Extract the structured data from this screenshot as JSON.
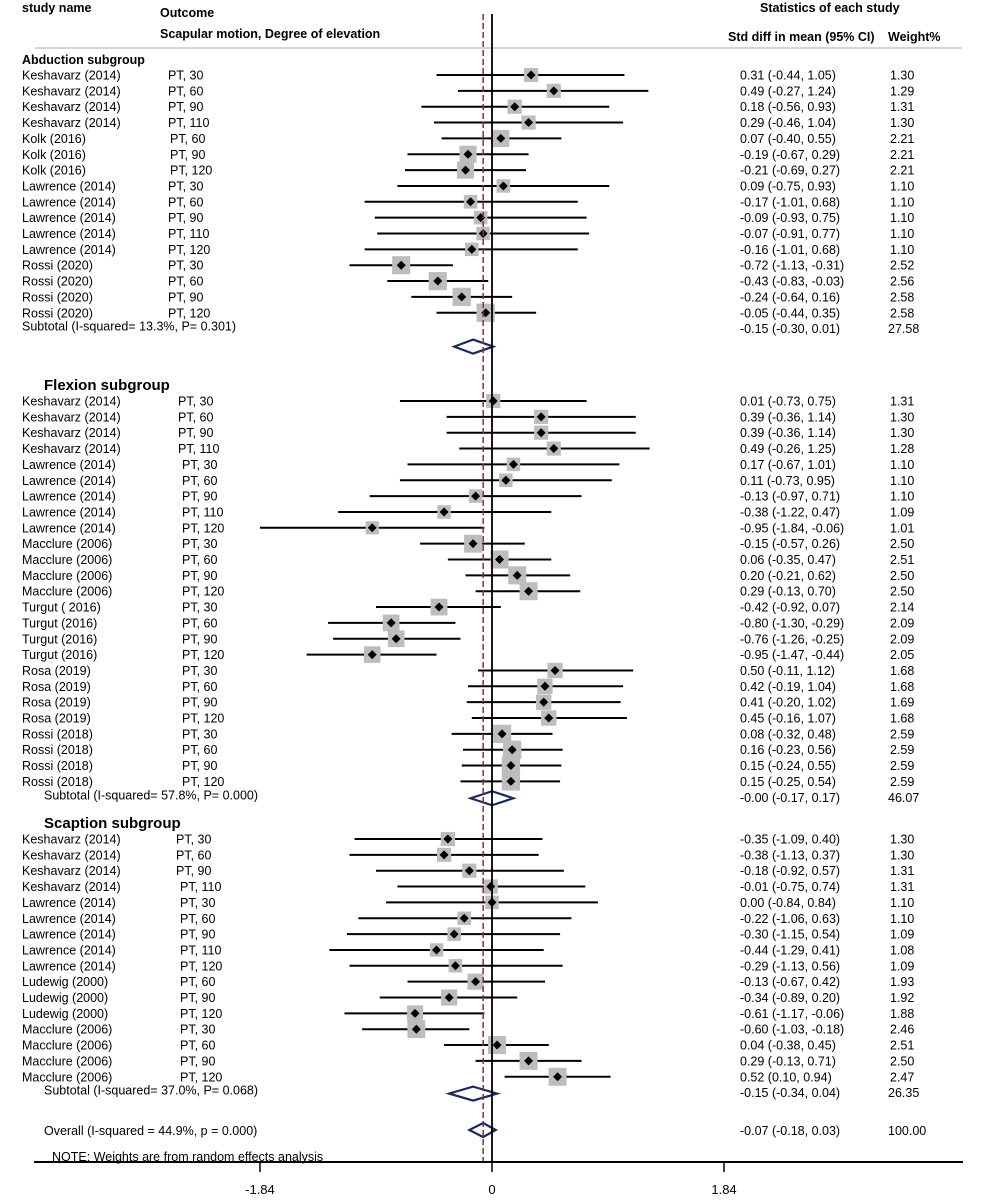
{
  "headers": {
    "study_name": "study name",
    "outcome": "Outcome",
    "outcome_sub": "Scapular motion, Degree of elevation",
    "stats_title": "Statistics of each study",
    "col_ci": "Std diff in mean (95% CI)",
    "col_weight": "Weight%"
  },
  "note": "NOTE: Weights are from random effects analysis",
  "chart_data": {
    "type": "forest",
    "x_ticks": [
      {
        "value": -1.84,
        "label": "-1.84"
      },
      {
        "value": 0,
        "label": "0"
      },
      {
        "value": 1.84,
        "label": "1.84"
      }
    ],
    "reference_line": 0,
    "overall_line": -0.07,
    "subgroups": [
      {
        "title": "Abduction subgroup",
        "studies": [
          {
            "study": "Keshavarz (2014)",
            "outcome": "PT, 30",
            "es": 0.31,
            "lo": -0.44,
            "hi": 1.05,
            "ci_text": "0.31 (-0.44, 1.05)",
            "weight": "1.30"
          },
          {
            "study": "Keshavarz (2014)",
            "outcome": "PT, 60",
            "es": 0.49,
            "lo": -0.27,
            "hi": 1.24,
            "ci_text": "0.49 (-0.27, 1.24)",
            "weight": "1.29"
          },
          {
            "study": "Keshavarz (2014)",
            "outcome": "PT, 90",
            "es": 0.18,
            "lo": -0.56,
            "hi": 0.93,
            "ci_text": "0.18 (-0.56, 0.93)",
            "weight": "1.31"
          },
          {
            "study": "Keshavarz (2014)",
            "outcome": "PT, 110",
            "es": 0.29,
            "lo": -0.46,
            "hi": 1.04,
            "ci_text": "0.29 (-0.46, 1.04)",
            "weight": "1.30"
          },
          {
            "study": "Kolk (2016)",
            "outcome": "PT, 60",
            "es": 0.07,
            "lo": -0.4,
            "hi": 0.55,
            "ci_text": "0.07 (-0.40, 0.55)",
            "weight": "2.21"
          },
          {
            "study": "Kolk (2016)",
            "outcome": "PT, 90",
            "es": -0.19,
            "lo": -0.67,
            "hi": 0.29,
            "ci_text": "-0.19 (-0.67, 0.29)",
            "weight": "2.21"
          },
          {
            "study": "Kolk (2016)",
            "outcome": "PT, 120",
            "es": -0.21,
            "lo": -0.69,
            "hi": 0.27,
            "ci_text": "-0.21 (-0.69, 0.27)",
            "weight": "2.21"
          },
          {
            "study": "Lawrence (2014)",
            "outcome": "PT, 30",
            "es": 0.09,
            "lo": -0.75,
            "hi": 0.93,
            "ci_text": "0.09 (-0.75, 0.93)",
            "weight": "1.10"
          },
          {
            "study": "Lawrence (2014)",
            "outcome": "PT, 60",
            "es": -0.17,
            "lo": -1.01,
            "hi": 0.68,
            "ci_text": "-0.17 (-1.01, 0.68)",
            "weight": "1.10"
          },
          {
            "study": "Lawrence (2014)",
            "outcome": "PT, 90",
            "es": -0.09,
            "lo": -0.93,
            "hi": 0.75,
            "ci_text": "-0.09 (-0.93, 0.75)",
            "weight": "1.10"
          },
          {
            "study": "Lawrence (2014)",
            "outcome": "PT, 110",
            "es": -0.07,
            "lo": -0.91,
            "hi": 0.77,
            "ci_text": "-0.07 (-0.91, 0.77)",
            "weight": "1.10"
          },
          {
            "study": "Lawrence (2014)",
            "outcome": "PT, 120",
            "es": -0.16,
            "lo": -1.01,
            "hi": 0.68,
            "ci_text": "-0.16 (-1.01, 0.68)",
            "weight": "1.10"
          },
          {
            "study": "Rossi (2020)",
            "outcome": "PT, 30",
            "es": -0.72,
            "lo": -1.13,
            "hi": -0.31,
            "ci_text": "-0.72 (-1.13, -0.31)",
            "weight": "2.52"
          },
          {
            "study": "Rossi (2020)",
            "outcome": "PT, 60",
            "es": -0.43,
            "lo": -0.83,
            "hi": -0.03,
            "ci_text": "-0.43 (-0.83, -0.03)",
            "weight": "2.56"
          },
          {
            "study": "Rossi (2020)",
            "outcome": "PT, 90",
            "es": -0.24,
            "lo": -0.64,
            "hi": 0.16,
            "ci_text": "-0.24 (-0.64, 0.16)",
            "weight": "2.58"
          },
          {
            "study": "Rossi (2020)",
            "outcome": "PT, 120",
            "es": -0.05,
            "lo": -0.44,
            "hi": 0.35,
            "ci_text": "-0.05 (-0.44, 0.35)",
            "weight": "2.58"
          }
        ],
        "subtotal": {
          "label": "Subtotal (I-squared= 13.3%, P= 0.301)",
          "es": -0.15,
          "lo": -0.3,
          "hi": 0.01,
          "ci_text": "-0.15 (-0.30, 0.01)",
          "weight": "27.58"
        }
      },
      {
        "title": "Flexion subgroup",
        "studies": [
          {
            "study": "Keshavarz (2014)",
            "outcome": "PT, 30",
            "es": 0.01,
            "lo": -0.73,
            "hi": 0.75,
            "ci_text": "0.01 (-0.73, 0.75)",
            "weight": "1.31"
          },
          {
            "study": "Keshavarz (2014)",
            "outcome": "PT, 60",
            "es": 0.39,
            "lo": -0.36,
            "hi": 1.14,
            "ci_text": "0.39 (-0.36, 1.14)",
            "weight": "1.30"
          },
          {
            "study": "Keshavarz (2014)",
            "outcome": "PT, 90",
            "es": 0.39,
            "lo": -0.36,
            "hi": 1.14,
            "ci_text": "0.39 (-0.36, 1.14)",
            "weight": "1.30"
          },
          {
            "study": "Keshavarz (2014)",
            "outcome": "PT, 110",
            "es": 0.49,
            "lo": -0.26,
            "hi": 1.25,
            "ci_text": "0.49 (-0.26, 1.25)",
            "weight": "1.28"
          },
          {
            "study": "Lawrence (2014)",
            "outcome": "PT, 30",
            "es": 0.17,
            "lo": -0.67,
            "hi": 1.01,
            "ci_text": "0.17 (-0.67, 1.01)",
            "weight": "1.10"
          },
          {
            "study": "Lawrence (2014)",
            "outcome": "PT, 60",
            "es": 0.11,
            "lo": -0.73,
            "hi": 0.95,
            "ci_text": "0.11 (-0.73, 0.95)",
            "weight": "1.10"
          },
          {
            "study": "Lawrence (2014)",
            "outcome": "PT, 90",
            "es": -0.13,
            "lo": -0.97,
            "hi": 0.71,
            "ci_text": "-0.13 (-0.97, 0.71)",
            "weight": "1.10"
          },
          {
            "study": "Lawrence (2014)",
            "outcome": "PT, 110",
            "es": -0.38,
            "lo": -1.22,
            "hi": 0.47,
            "ci_text": "-0.38 (-1.22, 0.47)",
            "weight": "1.09"
          },
          {
            "study": "Lawrence (2014)",
            "outcome": "PT, 120",
            "es": -0.95,
            "lo": -1.84,
            "hi": -0.06,
            "ci_text": "-0.95 (-1.84, -0.06)",
            "weight": "1.01"
          },
          {
            "study": "Macclure (2006)",
            "outcome": "PT, 30",
            "es": -0.15,
            "lo": -0.57,
            "hi": 0.26,
            "ci_text": "-0.15 (-0.57, 0.26)",
            "weight": "2.50"
          },
          {
            "study": "Macclure (2006)",
            "outcome": "PT, 60",
            "es": 0.06,
            "lo": -0.35,
            "hi": 0.47,
            "ci_text": "0.06 (-0.35, 0.47)",
            "weight": "2.51"
          },
          {
            "study": "Macclure (2006)",
            "outcome": "PT, 90",
            "es": 0.2,
            "lo": -0.21,
            "hi": 0.62,
            "ci_text": "0.20 (-0.21, 0.62)",
            "weight": "2.50"
          },
          {
            "study": "Macclure (2006)",
            "outcome": "PT, 120",
            "es": 0.29,
            "lo": -0.13,
            "hi": 0.7,
            "ci_text": "0.29 (-0.13, 0.70)",
            "weight": "2.50"
          },
          {
            "study": "Turgut ( 2016)",
            "outcome": "PT, 30",
            "es": -0.42,
            "lo": -0.92,
            "hi": 0.07,
            "ci_text": "-0.42 (-0.92, 0.07)",
            "weight": "2.14"
          },
          {
            "study": "Turgut (2016)",
            "outcome": "PT, 60",
            "es": -0.8,
            "lo": -1.3,
            "hi": -0.29,
            "ci_text": "-0.80 (-1.30, -0.29)",
            "weight": "2.09"
          },
          {
            "study": "Turgut (2016)",
            "outcome": "PT, 90",
            "es": -0.76,
            "lo": -1.26,
            "hi": -0.25,
            "ci_text": "-0.76 (-1.26, -0.25)",
            "weight": "2.09"
          },
          {
            "study": "Turgut (2016)",
            "outcome": "PT, 120",
            "es": -0.95,
            "lo": -1.47,
            "hi": -0.44,
            "ci_text": "-0.95 (-1.47, -0.44)",
            "weight": "2.05"
          },
          {
            "study": "Rosa (2019)",
            "outcome": "PT, 30",
            "es": 0.5,
            "lo": -0.11,
            "hi": 1.12,
            "ci_text": "0.50 (-0.11, 1.12)",
            "weight": "1.68"
          },
          {
            "study": "Rosa (2019)",
            "outcome": "PT, 60",
            "es": 0.42,
            "lo": -0.19,
            "hi": 1.04,
            "ci_text": "0.42 (-0.19, 1.04)",
            "weight": "1.68"
          },
          {
            "study": "Rosa (2019)",
            "outcome": "PT, 90",
            "es": 0.41,
            "lo": -0.2,
            "hi": 1.02,
            "ci_text": "0.41 (-0.20, 1.02)",
            "weight": "1.69"
          },
          {
            "study": "Rosa (2019)",
            "outcome": "PT, 120",
            "es": 0.45,
            "lo": -0.16,
            "hi": 1.07,
            "ci_text": "0.45 (-0.16, 1.07)",
            "weight": "1.68"
          },
          {
            "study": "Rossi (2018)",
            "outcome": "PT, 30",
            "es": 0.08,
            "lo": -0.32,
            "hi": 0.48,
            "ci_text": "0.08 (-0.32, 0.48)",
            "weight": "2.59"
          },
          {
            "study": "Rossi (2018)",
            "outcome": "PT, 60",
            "es": 0.16,
            "lo": -0.23,
            "hi": 0.56,
            "ci_text": "0.16 (-0.23, 0.56)",
            "weight": "2.59"
          },
          {
            "study": "Rossi (2018)",
            "outcome": "PT, 90",
            "es": 0.15,
            "lo": -0.24,
            "hi": 0.55,
            "ci_text": "0.15 (-0.24, 0.55)",
            "weight": "2.59"
          },
          {
            "study": "Rossi (2018)",
            "outcome": "PT, 120",
            "es": 0.15,
            "lo": -0.25,
            "hi": 0.54,
            "ci_text": "0.15 (-0.25, 0.54)",
            "weight": "2.59"
          }
        ],
        "subtotal": {
          "label": "Subtotal (I-squared= 57.8%, P= 0.000)",
          "es": -0.0,
          "lo": -0.17,
          "hi": 0.17,
          "ci_text": "-0.00 (-0.17, 0.17)",
          "weight": "46.07"
        }
      },
      {
        "title": "Scaption subgroup",
        "studies": [
          {
            "study": "Keshavarz (2014)",
            "outcome": "PT, 30",
            "es": -0.35,
            "lo": -1.09,
            "hi": 0.4,
            "ci_text": "-0.35 (-1.09, 0.40)",
            "weight": "1.30"
          },
          {
            "study": "Keshavarz (2014)",
            "outcome": "PT, 60",
            "es": -0.38,
            "lo": -1.13,
            "hi": 0.37,
            "ci_text": "-0.38 (-1.13, 0.37)",
            "weight": "1.30"
          },
          {
            "study": "Keshavarz (2014)",
            "outcome": "PT, 90",
            "es": -0.18,
            "lo": -0.92,
            "hi": 0.57,
            "ci_text": "-0.18 (-0.92, 0.57)",
            "weight": "1.31"
          },
          {
            "study": "Keshavarz (2014)",
            "outcome": "PT, 110",
            "es": -0.01,
            "lo": -0.75,
            "hi": 0.74,
            "ci_text": "-0.01 (-0.75, 0.74)",
            "weight": "1.31"
          },
          {
            "study": "Lawrence (2014)",
            "outcome": "PT, 30",
            "es": 0.0,
            "lo": -0.84,
            "hi": 0.84,
            "ci_text": "0.00 (-0.84, 0.84)",
            "weight": "1.10"
          },
          {
            "study": "Lawrence (2014)",
            "outcome": "PT, 60",
            "es": -0.22,
            "lo": -1.06,
            "hi": 0.63,
            "ci_text": "-0.22 (-1.06, 0.63)",
            "weight": "1.10"
          },
          {
            "study": "Lawrence (2014)",
            "outcome": "PT, 90",
            "es": -0.3,
            "lo": -1.15,
            "hi": 0.54,
            "ci_text": "-0.30 (-1.15, 0.54)",
            "weight": "1.09"
          },
          {
            "study": "Lawrence (2014)",
            "outcome": "PT, 110",
            "es": -0.44,
            "lo": -1.29,
            "hi": 0.41,
            "ci_text": "-0.44 (-1.29, 0.41)",
            "weight": "1.08"
          },
          {
            "study": "Lawrence (2014)",
            "outcome": "PT, 120",
            "es": -0.29,
            "lo": -1.13,
            "hi": 0.56,
            "ci_text": "-0.29 (-1.13, 0.56)",
            "weight": "1.09"
          },
          {
            "study": "Ludewig (2000)",
            "outcome": "PT, 60",
            "es": -0.13,
            "lo": -0.67,
            "hi": 0.42,
            "ci_text": "-0.13 (-0.67, 0.42)",
            "weight": "1.93"
          },
          {
            "study": "Ludewig (2000)",
            "outcome": "PT, 90",
            "es": -0.34,
            "lo": -0.89,
            "hi": 0.2,
            "ci_text": "-0.34 (-0.89, 0.20)",
            "weight": "1.92"
          },
          {
            "study": "Ludewig (2000)",
            "outcome": "PT, 120",
            "es": -0.61,
            "lo": -1.17,
            "hi": -0.06,
            "ci_text": "-0.61 (-1.17, -0.06)",
            "weight": "1.88"
          },
          {
            "study": "Macclure (2006)",
            "outcome": "PT, 30",
            "es": -0.6,
            "lo": -1.03,
            "hi": -0.18,
            "ci_text": "-0.60 (-1.03, -0.18)",
            "weight": "2.46"
          },
          {
            "study": "Macclure (2006)",
            "outcome": "PT, 60",
            "es": 0.04,
            "lo": -0.38,
            "hi": 0.45,
            "ci_text": "0.04 (-0.38, 0.45)",
            "weight": "2.51"
          },
          {
            "study": "Macclure (2006)",
            "outcome": "PT, 90",
            "es": 0.29,
            "lo": -0.13,
            "hi": 0.71,
            "ci_text": "0.29 (-0.13, 0.71)",
            "weight": "2.50"
          },
          {
            "study": "Macclure (2006)",
            "outcome": "PT, 120",
            "es": 0.52,
            "lo": 0.1,
            "hi": 0.94,
            "ci_text": "0.52 (0.10, 0.94)",
            "weight": "2.47"
          }
        ],
        "subtotal": {
          "label": "Subtotal (I-squared= 37.0%, P= 0.068)",
          "es": -0.15,
          "lo": -0.34,
          "hi": 0.04,
          "ci_text": "-0.15 (-0.34, 0.04)",
          "weight": "26.35"
        }
      }
    ],
    "overall": {
      "label": "Overall  (I-squared = 44.9%, p = 0.000)",
      "es": -0.07,
      "lo": -0.18,
      "hi": 0.03,
      "ci_text": "-0.07 (-0.18, 0.03)",
      "weight": "100.00"
    }
  }
}
